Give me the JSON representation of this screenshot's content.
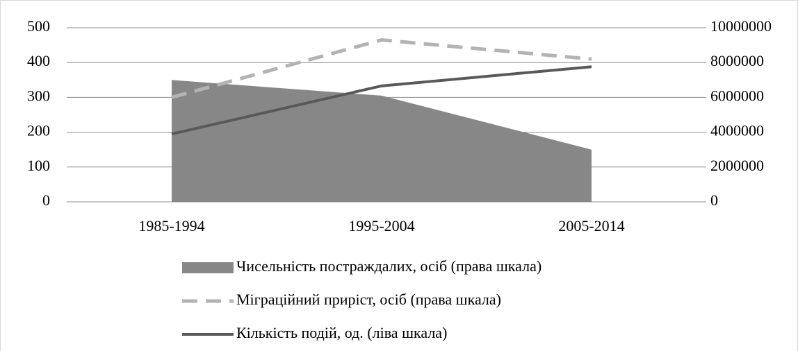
{
  "chart_data": {
    "type": "combo",
    "categories": [
      "1985-1994",
      "1995-2004",
      "2005-2014"
    ],
    "series": [
      {
        "name": "Чисельність постраждалих, осіб (права шкала)",
        "type": "area",
        "color": "#878787",
        "axis": "y2",
        "values": [
          7000000,
          6100000,
          3000000
        ]
      },
      {
        "name": "Міграційний приріст, осіб (права шкала)",
        "type": "line",
        "dashed": true,
        "color": "#b3b3b3",
        "axis": "y2",
        "values": [
          6000000,
          9300000,
          8200000
        ]
      },
      {
        "name": "Кількість подій, од. (ліва шкала)",
        "type": "line",
        "dashed": false,
        "color": "#595959",
        "values": [
          195,
          333,
          388
        ]
      }
    ],
    "ylim": [
      0,
      500
    ],
    "yticks": [
      0,
      100,
      200,
      300,
      400,
      500
    ],
    "y2lim": [
      0,
      10000000
    ],
    "y2ticks": [
      0,
      2000000,
      4000000,
      6000000,
      8000000,
      10000000
    ],
    "grid": true,
    "legend": "bottom"
  }
}
